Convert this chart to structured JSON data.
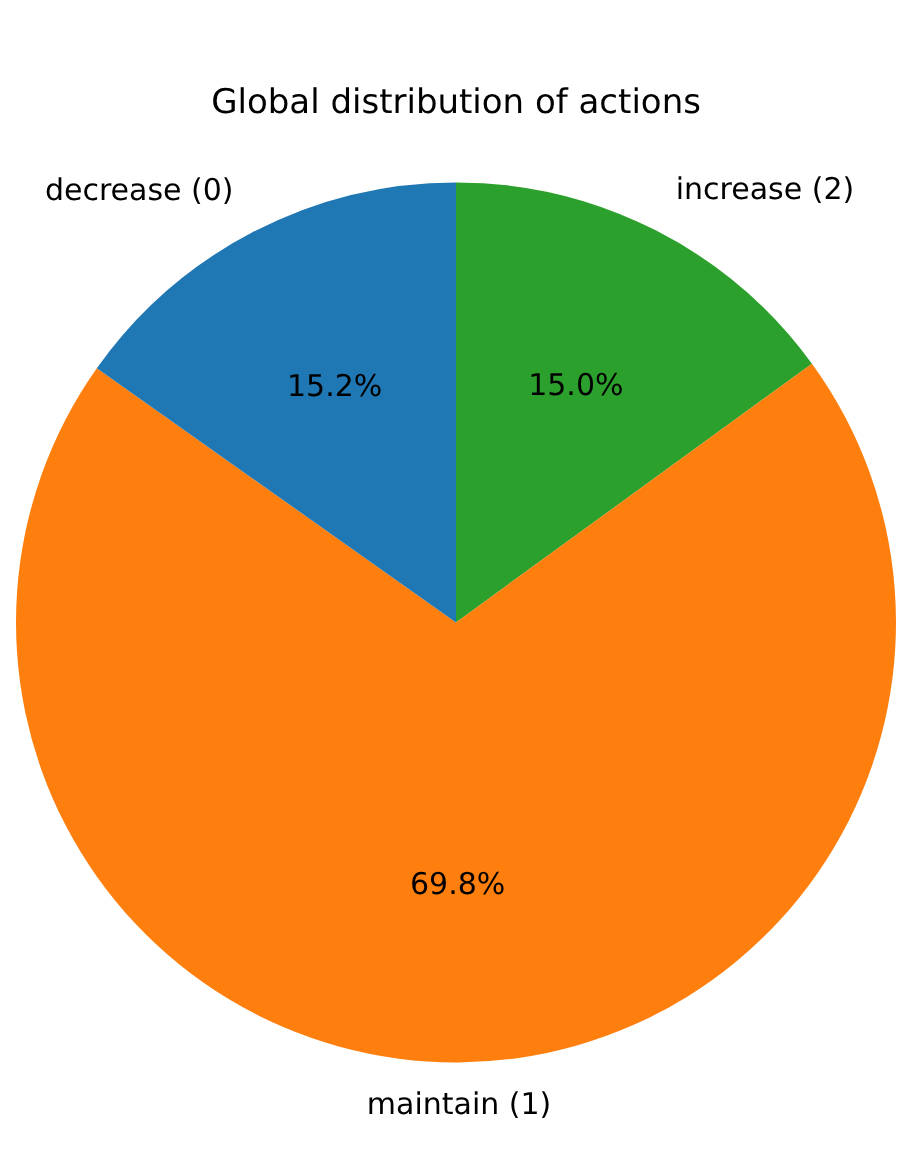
{
  "chart_data": {
    "type": "pie",
    "title": "Global distribution of actions",
    "categories": [
      "decrease (0)",
      "maintain (1)",
      "increase (2)"
    ],
    "values": [
      15.2,
      69.8,
      15.0
    ],
    "colors": [
      "#1f77b4",
      "#ff7f0e",
      "#2ca02c"
    ],
    "value_labels": [
      "15.2%",
      "69.8%",
      "15.0%"
    ],
    "legend": false
  }
}
